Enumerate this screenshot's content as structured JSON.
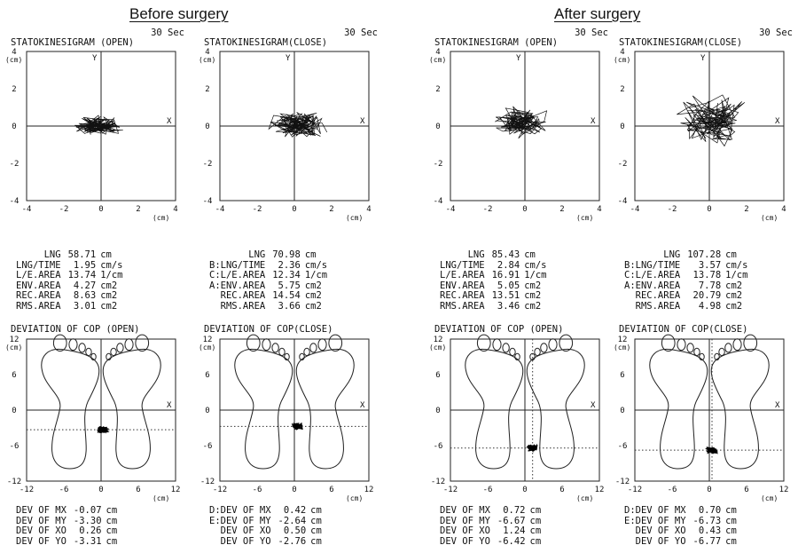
{
  "headers": {
    "before": "Before surgery",
    "after": "After surgery"
  },
  "panels": [
    {
      "id": "before-open",
      "duration": "30 Sec",
      "stato_title": "STATOKINESIGRAM (OPEN)",
      "stats": [
        {
          "label": "LNG",
          "value": "58.71",
          "unit": "cm"
        },
        {
          "label": "LNG/TIME",
          "value": "1.95",
          "unit": "cm/s"
        },
        {
          "label": "L/E.AREA",
          "value": "13.74",
          "unit": "1/cm"
        },
        {
          "label": "ENV.AREA",
          "value": "4.27",
          "unit": "cm2"
        },
        {
          "label": "REC.AREA",
          "value": "8.63",
          "unit": "cm2"
        },
        {
          "label": "RMS.AREA",
          "value": "3.01",
          "unit": "cm2"
        }
      ],
      "dev_title": "DEVIATION OF COP (OPEN)",
      "devs": [
        {
          "label": "DEV OF MX",
          "value": "-0.07",
          "unit": "cm"
        },
        {
          "label": "DEV OF MY",
          "value": "-3.30",
          "unit": "cm"
        },
        {
          "label": "DEV OF XO",
          "value": "0.26",
          "unit": "cm"
        },
        {
          "label": "DEV OF YO",
          "value": "-3.31",
          "unit": "cm"
        }
      ]
    },
    {
      "id": "before-close",
      "duration": "30 Sec",
      "stato_title": "STATOKINESIGRAM(CLOSE)",
      "stats": [
        {
          "label": "LNG",
          "value": "70.98",
          "unit": "cm"
        },
        {
          "label": "B:LNG/TIME",
          "value": "2.36",
          "unit": "cm/s"
        },
        {
          "label": "C:L/E.AREA",
          "value": "12.34",
          "unit": "1/cm"
        },
        {
          "label": "A:ENV.AREA",
          "value": "5.75",
          "unit": "cm2"
        },
        {
          "label": "REC.AREA",
          "value": "14.54",
          "unit": "cm2"
        },
        {
          "label": "RMS.AREA",
          "value": "3.66",
          "unit": "cm2"
        }
      ],
      "dev_title": "DEVIATION OF COP(CLOSE)",
      "devs": [
        {
          "label": "D:DEV OF MX",
          "value": "0.42",
          "unit": "cm"
        },
        {
          "label": "E:DEV OF MY",
          "value": "-2.64",
          "unit": "cm"
        },
        {
          "label": "DEV OF XO",
          "value": "0.50",
          "unit": "cm"
        },
        {
          "label": "DEV OF YO",
          "value": "-2.76",
          "unit": "cm"
        }
      ]
    },
    {
      "id": "after-open",
      "duration": "30 Sec",
      "stato_title": "STATOKINESIGRAM (OPEN)",
      "stats": [
        {
          "label": "LNG",
          "value": "85.43",
          "unit": "cm"
        },
        {
          "label": "LNG/TIME",
          "value": "2.84",
          "unit": "cm/s"
        },
        {
          "label": "L/E.AREA",
          "value": "16.91",
          "unit": "1/cm"
        },
        {
          "label": "ENV.AREA",
          "value": "5.05",
          "unit": "cm2"
        },
        {
          "label": "REC.AREA",
          "value": "13.51",
          "unit": "cm2"
        },
        {
          "label": "RMS.AREA",
          "value": "3.46",
          "unit": "cm2"
        }
      ],
      "dev_title": "DEVIATION OF COP (OPEN)",
      "devs": [
        {
          "label": "DEV OF MX",
          "value": "0.72",
          "unit": "cm"
        },
        {
          "label": "DEV OF MY",
          "value": "-6.67",
          "unit": "cm"
        },
        {
          "label": "DEV OF XO",
          "value": "1.24",
          "unit": "cm"
        },
        {
          "label": "DEV OF YO",
          "value": "-6.42",
          "unit": "cm"
        }
      ]
    },
    {
      "id": "after-close",
      "duration": "30 Sec",
      "stato_title": "STATOKINESIGRAM(CLOSE)",
      "stats": [
        {
          "label": "LNG",
          "value": "107.28",
          "unit": "cm"
        },
        {
          "label": "B:LNG/TIME",
          "value": "3.57",
          "unit": "cm/s"
        },
        {
          "label": "C:L/E.AREA",
          "value": "13.78",
          "unit": "1/cm"
        },
        {
          "label": "A:ENV.AREA",
          "value": "7.78",
          "unit": "cm2"
        },
        {
          "label": "REC.AREA",
          "value": "20.79",
          "unit": "cm2"
        },
        {
          "label": "RMS.AREA",
          "value": "4.98",
          "unit": "cm2"
        }
      ],
      "dev_title": "DEVIATION OF COP(CLOSE)",
      "devs": [
        {
          "label": "D:DEV OF MX",
          "value": "0.70",
          "unit": "cm"
        },
        {
          "label": "E:DEV OF MY",
          "value": "-6.73",
          "unit": "cm"
        },
        {
          "label": "DEV OF XO",
          "value": "0.43",
          "unit": "cm"
        },
        {
          "label": "DEV OF YO",
          "value": "-6.77",
          "unit": "cm"
        }
      ]
    }
  ],
  "chart_data": [
    {
      "type": "scatter",
      "chart": "statokinesigram",
      "xlim": [
        -4,
        4
      ],
      "ylim": [
        -4,
        4
      ],
      "xticks": [
        "-4",
        "-2",
        "0",
        "2",
        "4"
      ],
      "yticks": [
        "4",
        "2",
        "0",
        "-2",
        "-4"
      ],
      "x_axis_label": "X",
      "y_axis_label": "Y",
      "unit_label": "(cm)",
      "grid": false,
      "sway_center": {
        "before-open": [
          -0.1,
          0.05
        ],
        "before-close": [
          0.2,
          0.1
        ],
        "after-open": [
          -0.2,
          0.2
        ],
        "after-close": [
          0.1,
          0.3
        ]
      }
    },
    {
      "type": "scatter",
      "chart": "deviation-of-cop",
      "xlim": [
        -12,
        12
      ],
      "ylim": [
        -12,
        12
      ],
      "xticks": [
        "-12",
        "-6",
        "0",
        "6",
        "12"
      ],
      "yticks": [
        "12",
        "6",
        "0",
        "-6",
        "-12"
      ],
      "x_axis_label": "X",
      "unit_label": "(cm)",
      "grid": false,
      "cop_center": {
        "before-open": [
          0.26,
          -3.31
        ],
        "before-close": [
          0.5,
          -2.76
        ],
        "after-open": [
          1.24,
          -6.42
        ],
        "after-close": [
          0.43,
          -6.77
        ]
      }
    }
  ]
}
